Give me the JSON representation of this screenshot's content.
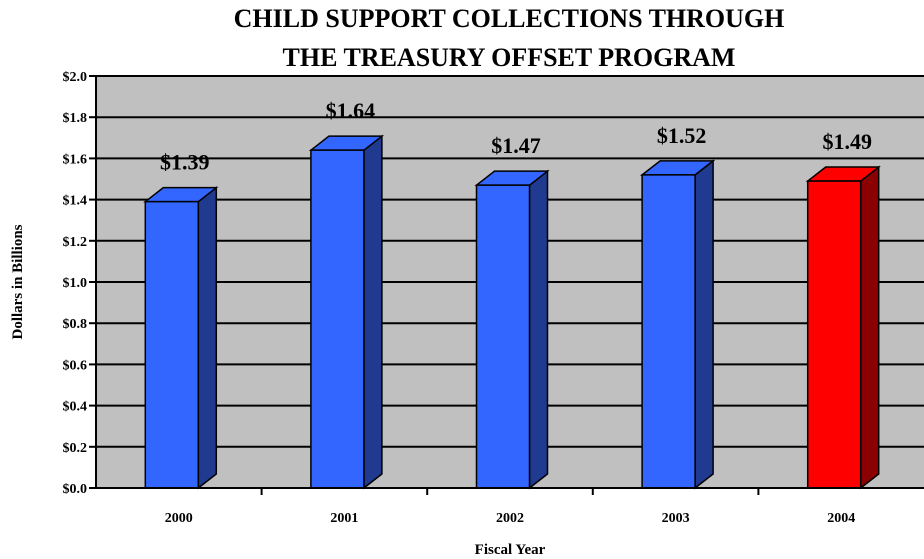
{
  "chart_data": {
    "type": "bar",
    "title_lines": [
      "CHILD SUPPORT COLLECTIONS THROUGH",
      "THE TREASURY OFFSET PROGRAM"
    ],
    "xlabel": "Fiscal Year",
    "ylabel": "Dollars in Billions",
    "categories": [
      "2000",
      "2001",
      "2002",
      "2003",
      "2004"
    ],
    "values": [
      1.39,
      1.64,
      1.47,
      1.52,
      1.49
    ],
    "data_labels": [
      "$1.39",
      "$1.64",
      "$1.47",
      "$1.52",
      "$1.49"
    ],
    "ylim": [
      0,
      2.0
    ],
    "yticks": [
      0,
      0.2,
      0.4,
      0.6,
      0.8,
      1.0,
      1.2,
      1.4,
      1.6,
      1.8,
      2.0
    ],
    "ytick_labels": [
      "$0.0",
      "$0.2",
      "$0.4",
      "$0.6",
      "$0.8",
      "$1.0",
      "$1.2",
      "$1.4",
      "$1.6",
      "$1.8",
      "$2.0"
    ],
    "grid": true,
    "colors": {
      "plot_background": "#c0c0c0",
      "bar_default": "#3366ff",
      "bar_default_side": "#1f3a8f",
      "bar_highlight": "#ff0000",
      "bar_highlight_side": "#8b0000"
    },
    "highlight_index": 4
  }
}
